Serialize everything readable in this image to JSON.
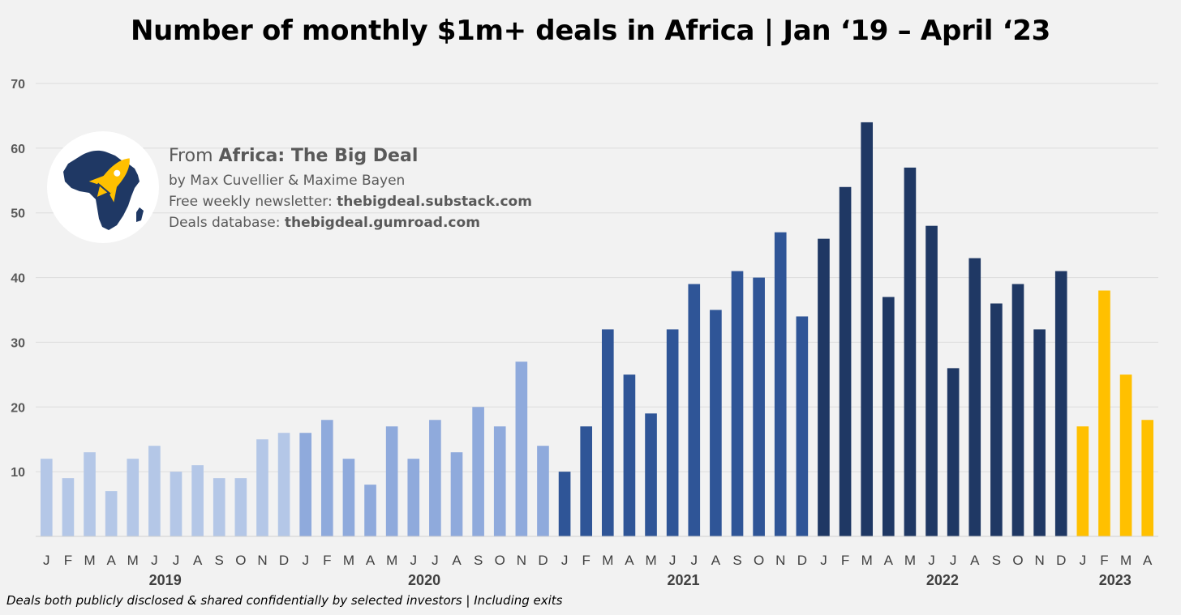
{
  "chart_data": {
    "type": "bar",
    "title": "Number of monthly $1m+ deals in Africa | Jan ‘19 – April ‘23",
    "ylim": [
      0,
      70
    ],
    "yticks": [
      10,
      20,
      30,
      40,
      50,
      60,
      70
    ],
    "grid": true,
    "categories": [
      "J",
      "F",
      "M",
      "A",
      "M",
      "J",
      "J",
      "A",
      "S",
      "O",
      "N",
      "D",
      "J",
      "F",
      "M",
      "A",
      "M",
      "J",
      "J",
      "A",
      "S",
      "O",
      "N",
      "D",
      "J",
      "F",
      "M",
      "A",
      "M",
      "J",
      "J",
      "A",
      "S",
      "O",
      "N",
      "D",
      "J",
      "F",
      "M",
      "A",
      "M",
      "J",
      "J",
      "A",
      "S",
      "O",
      "N",
      "D",
      "J",
      "F",
      "M",
      "A"
    ],
    "groups": [
      {
        "year": "2019",
        "months": 12,
        "color": "#b4c7e7"
      },
      {
        "year": "2020",
        "months": 12,
        "color": "#8faadc"
      },
      {
        "year": "2021",
        "months": 12,
        "color": "#2f5597"
      },
      {
        "year": "2022",
        "months": 12,
        "color": "#1f3864"
      },
      {
        "year": "2023",
        "months": 4,
        "color": "#ffc000"
      }
    ],
    "values": [
      12,
      9,
      13,
      7,
      12,
      14,
      10,
      11,
      9,
      9,
      15,
      16,
      16,
      18,
      12,
      8,
      17,
      12,
      18,
      13,
      20,
      17,
      27,
      14,
      10,
      17,
      32,
      25,
      19,
      32,
      39,
      35,
      41,
      40,
      47,
      34,
      46,
      54,
      64,
      37,
      57,
      48,
      26,
      43,
      36,
      39,
      32,
      41,
      17,
      38,
      25,
      18
    ]
  },
  "brand": {
    "prefix": "From ",
    "name": "Africa: The Big Deal",
    "authors": "by Max Cuvellier & Maxime Bayen",
    "newsletter_label": "Free weekly newsletter: ",
    "newsletter_url": "thebigdeal.substack.com",
    "database_label": "Deals database: ",
    "database_url": "thebigdeal.gumroad.com",
    "colors": {
      "logo_bg": "#ffffff",
      "africa": "#1f3864",
      "rocket": "#ffc000"
    }
  },
  "footnote": "Deals both publicly disclosed & shared confidentially by selected investors | Including exits"
}
